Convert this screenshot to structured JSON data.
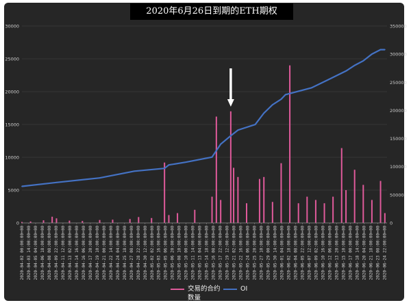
{
  "chart_data": {
    "type": "bar+line",
    "title": "2020年6月26日到期的ETH期权",
    "xlabel": "",
    "ylabel_left": "",
    "ylabel_right": "",
    "ylim_left": [
      0,
      30000
    ],
    "ylim_right": [
      0,
      350000
    ],
    "yticks_left": [
      "0",
      "5000",
      "10000",
      "15000",
      "20000",
      "25000",
      "30000"
    ],
    "yticks_right": [
      "0",
      "50000",
      "100000",
      "150000",
      "200000",
      "250000",
      "300000",
      "350000"
    ],
    "grid": true,
    "legend_position": "bottom",
    "colors": {
      "volume": "#e05a9b",
      "oi": "#4472c4",
      "background": "#262626",
      "arrow": "#ffffff"
    },
    "annotation": {
      "type": "arrow",
      "points_to": "2020-05-20 08:00:00+00"
    },
    "series": [
      {
        "name": "交易的合约数量",
        "kind": "bar",
        "axis": "left",
        "points": [
          [
            "2020-04-02 00:00:00+00",
            150
          ],
          [
            "2020-04-04 00:00:00+00",
            220
          ],
          [
            "2020-04-07 00:00:00+00",
            400
          ],
          [
            "2020-04-09 00:00:00+00",
            950
          ],
          [
            "2020-04-10 00:00:00+00",
            700
          ],
          [
            "2020-04-13 00:00:00+00",
            350
          ],
          [
            "2020-04-16 00:00:00+00",
            300
          ],
          [
            "2020-04-20 00:00:00+00",
            450
          ],
          [
            "2020-04-23 00:00:00+00",
            500
          ],
          [
            "2020-04-27 00:00:00+00",
            600
          ],
          [
            "2020-04-29 00:00:00+00",
            900
          ],
          [
            "2020-05-02 00:00:00+00",
            750
          ],
          [
            "2020-05-05 00:00:00+00",
            9200
          ],
          [
            "2020-05-06 00:00:00+00",
            1200
          ],
          [
            "2020-05-08 00:00:00+00",
            1500
          ],
          [
            "2020-05-12 00:00:00+00",
            2000
          ],
          [
            "2020-05-16 00:00:00+00",
            4000
          ],
          [
            "2020-05-17 00:00:00+00",
            16200
          ],
          [
            "2020-05-18 00:00:00+00",
            3500
          ],
          [
            "2020-05-20 08:00:00+00",
            17000
          ],
          [
            "2020-05-21 00:00:00+00",
            8400
          ],
          [
            "2020-05-22 00:00:00+00",
            7000
          ],
          [
            "2020-05-24 00:00:00+00",
            3000
          ],
          [
            "2020-05-27 00:00:00+00",
            6700
          ],
          [
            "2020-05-28 00:00:00+00",
            7000
          ],
          [
            "2020-05-30 00:00:00+00",
            3200
          ],
          [
            "2020-06-01 00:00:00+00",
            9100
          ],
          [
            "2020-06-03 00:00:00+00",
            24000
          ],
          [
            "2020-06-05 00:00:00+00",
            3000
          ],
          [
            "2020-06-07 00:00:00+00",
            4000
          ],
          [
            "2020-06-09 00:00:00+00",
            3500
          ],
          [
            "2020-06-11 00:00:00+00",
            3000
          ],
          [
            "2020-06-13 00:00:00+00",
            4000
          ],
          [
            "2020-06-15 00:00:00+00",
            11400
          ],
          [
            "2020-06-16 00:00:00+00",
            5000
          ],
          [
            "2020-06-18 00:00:00+00",
            8100
          ],
          [
            "2020-06-20 00:00:00+00",
            5800
          ],
          [
            "2020-06-22 00:00:00+00",
            3500
          ],
          [
            "2020-06-24 00:00:00+00",
            6400
          ],
          [
            "2020-06-25 00:00:00+00",
            1500
          ]
        ]
      },
      {
        "name": "OI",
        "kind": "line",
        "axis": "right",
        "points": [
          [
            "2020-04-02 00:00:00+00",
            65000
          ],
          [
            "2020-04-10 00:00:00+00",
            72000
          ],
          [
            "2020-04-20 00:00:00+00",
            80000
          ],
          [
            "2020-04-28 00:00:00+00",
            92000
          ],
          [
            "2020-05-05 00:00:00+00",
            97000
          ],
          [
            "2020-05-06 00:00:00+00",
            103000
          ],
          [
            "2020-05-10 00:00:00+00",
            108000
          ],
          [
            "2020-05-16 00:00:00+00",
            117000
          ],
          [
            "2020-05-18 00:00:00+00",
            140000
          ],
          [
            "2020-05-20 08:00:00+00",
            155000
          ],
          [
            "2020-05-22 00:00:00+00",
            165000
          ],
          [
            "2020-05-26 00:00:00+00",
            175000
          ],
          [
            "2020-05-28 00:00:00+00",
            195000
          ],
          [
            "2020-05-30 00:00:00+00",
            210000
          ],
          [
            "2020-06-01 00:00:00+00",
            220000
          ],
          [
            "2020-06-02 00:00:00+00",
            228000
          ],
          [
            "2020-06-08 00:00:00+00",
            240000
          ],
          [
            "2020-06-12 00:00:00+00",
            255000
          ],
          [
            "2020-06-16 00:00:00+00",
            270000
          ],
          [
            "2020-06-18 00:00:00+00",
            280000
          ],
          [
            "2020-06-20 00:00:00+00",
            288000
          ],
          [
            "2020-06-22 00:00:00+00",
            300000
          ],
          [
            "2020-06-24 00:00:00+00",
            308000
          ],
          [
            "2020-06-25 00:00:00+00",
            308000
          ]
        ]
      }
    ],
    "x_tick_labels": [
      "2020-04-02 00:00:00+00",
      "2020-04-03 14:00:00+00",
      "2020-04-05 04:00:00+00",
      "2020-04-06 18:00:00+00",
      "2020-04-08 08:00:00+00",
      "2020-04-09 22:00:00+00",
      "2020-04-11 12:00:00+00",
      "2020-04-13 02:00:00+00",
      "2020-04-14 16:00:00+00",
      "2020-04-16 06:00:00+00",
      "2020-04-17 20:00:00+00",
      "2020-04-19 10:00:00+00",
      "2020-04-21 00:00:00+00",
      "2020-04-22 14:00:00+00",
      "2020-04-24 04:00:00+00",
      "2020-04-25 18:00:00+00",
      "2020-04-27 08:00:00+00",
      "2020-04-28 22:00:00+00",
      "2020-04-30 12:00:00+00",
      "2020-05-02 02:00:00+00",
      "2020-05-03 16:00:00+00",
      "2020-05-05 06:00:00+00",
      "2020-05-06 20:00:00+00",
      "2020-05-08 10:00:00+00",
      "2020-05-10 00:00:00+00",
      "2020-05-11 14:00:00+00",
      "2020-05-13 04:00:00+00",
      "2020-05-14 18:00:00+00",
      "2020-05-16 08:00:00+00",
      "2020-05-17 22:00:00+00",
      "2020-05-19 12:00:00+00",
      "2020-05-21 02:00:00+00",
      "2020-05-22 16:00:00+00",
      "2020-05-24 06:00:00+00",
      "2020-05-25 20:00:00+00",
      "2020-05-27 10:00:00+00",
      "2020-05-29 00:00:00+00",
      "2020-05-30 14:00:00+00",
      "2020-06-01 04:00:00+00",
      "2020-06-02 18:00:00+00",
      "2020-06-04 08:00:00+00",
      "2020-06-05 22:00:00+00",
      "2020-06-07 12:00:00+00",
      "2020-06-09 02:00:00+00",
      "2020-06-10 16:00:00+00",
      "2020-06-12 06:00:00+00",
      "2020-06-13 20:00:00+00",
      "2020-06-15 10:00:00+00",
      "2020-06-17 00:00:00+00",
      "2020-06-18 14:00:00+00",
      "2020-06-20 04:00:00+00",
      "2020-06-21 18:00:00+00",
      "2020-06-23 08:00:00+00",
      "2020-06-24 22:00:00+00"
    ]
  }
}
